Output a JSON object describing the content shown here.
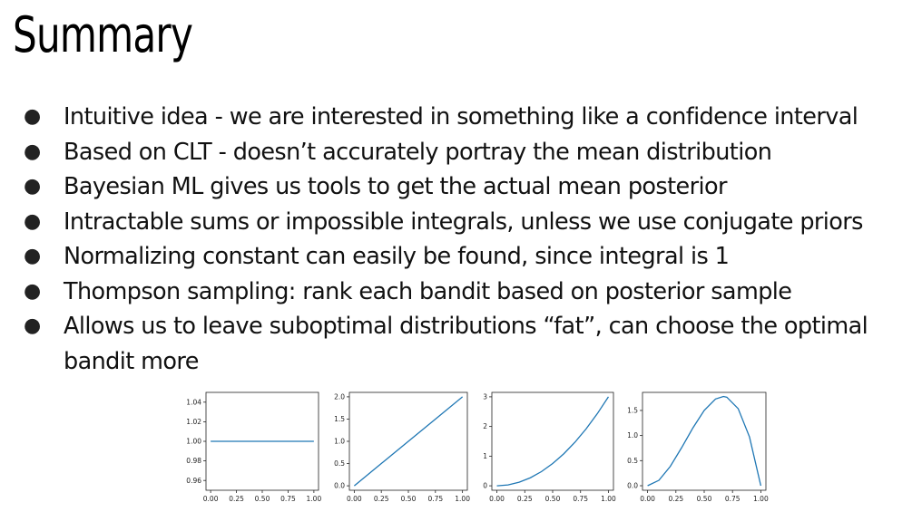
{
  "slide": {
    "title": "Summary",
    "bullets": [
      "Intuitive idea - we are interested in something like a confidence interval",
      "Based on CLT - doesn’t accurately portray the mean distribution",
      "Bayesian ML gives us tools to get the actual mean posterior",
      "Intractable sums or impossible integrals, unless we use conjugate priors",
      "Normalizing constant can easily be found, since integral is 1",
      "Thompson sampling: rank each bandit based on posterior sample",
      "Allows us to leave suboptimal distributions “fat”, can choose the optimal bandit more"
    ]
  },
  "chart_data": [
    {
      "type": "line",
      "title": "",
      "xlabel": "",
      "ylabel": "",
      "xlim": [
        0,
        1
      ],
      "ylim": [
        0.95,
        1.05
      ],
      "xticks": [
        "0.00",
        "0.25",
        "0.50",
        "0.75",
        "1.00"
      ],
      "yticks": [
        "0.96",
        "0.98",
        "1.00",
        "1.02",
        "1.04"
      ],
      "series": [
        {
          "x": [
            0,
            0.25,
            0.5,
            0.75,
            1
          ],
          "y": [
            1,
            1,
            1,
            1,
            1
          ]
        }
      ],
      "line_color": "#1f77b4",
      "grid": false
    },
    {
      "type": "line",
      "title": "",
      "xlabel": "",
      "ylabel": "",
      "xlim": [
        0,
        1
      ],
      "ylim": [
        -0.1,
        2.1
      ],
      "xticks": [
        "0.00",
        "0.25",
        "0.50",
        "0.75",
        "1.00"
      ],
      "yticks": [
        "0.0",
        "0.5",
        "1.0",
        "1.5",
        "2.0"
      ],
      "series": [
        {
          "x": [
            0,
            0.25,
            0.5,
            0.75,
            1
          ],
          "y": [
            0,
            0.5,
            1,
            1.5,
            2
          ]
        }
      ],
      "line_color": "#1f77b4",
      "grid": false
    },
    {
      "type": "line",
      "title": "",
      "xlabel": "",
      "ylabel": "",
      "xlim": [
        0,
        1
      ],
      "ylim": [
        -0.15,
        3.15
      ],
      "xticks": [
        "0.00",
        "0.25",
        "0.50",
        "0.75",
        "1.00"
      ],
      "yticks": [
        "0",
        "1",
        "2",
        "3"
      ],
      "series": [
        {
          "x": [
            0,
            0.1,
            0.2,
            0.3,
            0.4,
            0.5,
            0.6,
            0.7,
            0.8,
            0.9,
            1
          ],
          "y": [
            0,
            0.03,
            0.12,
            0.27,
            0.48,
            0.75,
            1.08,
            1.47,
            1.92,
            2.43,
            3
          ]
        }
      ],
      "line_color": "#1f77b4",
      "grid": false
    },
    {
      "type": "line",
      "title": "",
      "xlabel": "",
      "ylabel": "",
      "xlim": [
        0,
        1
      ],
      "ylim": [
        -0.09,
        1.86
      ],
      "xticks": [
        "0.00",
        "0.25",
        "0.50",
        "0.75",
        "1.00"
      ],
      "yticks": [
        "0.0",
        "0.5",
        "1.0",
        "1.5"
      ],
      "series": [
        {
          "x": [
            0,
            0.1,
            0.2,
            0.3,
            0.4,
            0.5,
            0.6,
            0.67,
            0.7,
            0.8,
            0.9,
            1
          ],
          "y": [
            0,
            0.108,
            0.384,
            0.756,
            1.152,
            1.5,
            1.728,
            1.778,
            1.764,
            1.536,
            0.972,
            0
          ]
        }
      ],
      "line_color": "#1f77b4",
      "grid": false
    }
  ]
}
